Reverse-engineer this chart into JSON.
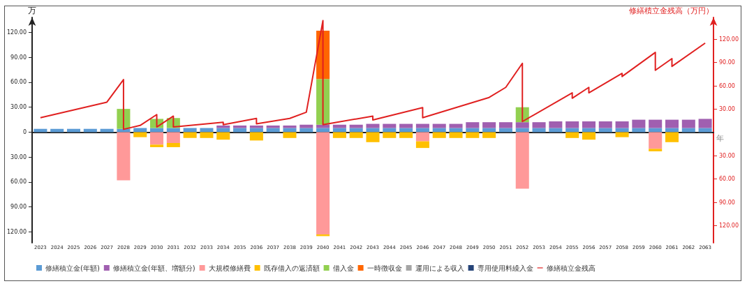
{
  "chart_data": {
    "type": "bar",
    "stacked": true,
    "ylabel": "万",
    "y2label": "修繕積立金残高（万円）",
    "xlabel": "年",
    "x": [
      2023,
      2024,
      2025,
      2026,
      2027,
      2028,
      2029,
      2030,
      2031,
      2032,
      2033,
      2034,
      2035,
      2036,
      2037,
      2038,
      2039,
      2040,
      2041,
      2042,
      2043,
      2044,
      2045,
      2046,
      2047,
      2048,
      2049,
      2050,
      2051,
      2052,
      2053,
      2054,
      2055,
      2056,
      2057,
      2058,
      2059,
      2060,
      2061,
      2062,
      2063
    ],
    "xlim": [
      2022.5,
      2063.5
    ],
    "xticks": [
      2023,
      2024,
      2025,
      2026,
      2027,
      2028,
      2029,
      2030,
      2031,
      2032,
      2033,
      2034,
      2035,
      2036,
      2037,
      2038,
      2039,
      2040,
      2041,
      2042,
      2043,
      2044,
      2045,
      2046,
      2047,
      2048,
      2049,
      2050,
      2051,
      2052,
      2053,
      2054,
      2055,
      2056,
      2057,
      2058,
      2059,
      2060,
      2061,
      2062,
      2063
    ],
    "series": [
      {
        "name": "修繕積立金(年額)",
        "color": "#5b9bd5",
        "values": [
          4,
          4,
          4,
          4,
          4,
          4,
          5,
          5,
          5,
          5,
          5,
          5,
          5,
          5,
          5,
          5,
          5,
          5,
          5,
          5,
          5,
          5,
          5,
          5,
          5,
          5,
          5,
          5,
          5,
          5,
          5,
          5,
          5,
          5,
          5,
          5,
          5,
          5,
          5,
          5,
          5
        ]
      },
      {
        "name": "修繕積立金(年額、増額分)",
        "color": "#a05fb0",
        "values": [
          null,
          null,
          null,
          null,
          null,
          null,
          null,
          null,
          null,
          null,
          null,
          3,
          3,
          3,
          3,
          3,
          4,
          4,
          4,
          4,
          5,
          5,
          5,
          5,
          5,
          5,
          7,
          7,
          7,
          7,
          7,
          8,
          8,
          8,
          8,
          8,
          10,
          10,
          10,
          10,
          11
        ]
      },
      {
        "name": "大規模修繕費",
        "color": "#ff9999",
        "values": [
          null,
          null,
          null,
          null,
          null,
          -58,
          null,
          -15,
          -13,
          null,
          null,
          null,
          null,
          null,
          null,
          null,
          null,
          -123,
          null,
          null,
          null,
          null,
          null,
          -11,
          null,
          null,
          null,
          null,
          null,
          -68,
          null,
          null,
          null,
          null,
          null,
          null,
          null,
          -20,
          null,
          null,
          null
        ]
      },
      {
        "name": "既存借入の返済額",
        "color": "#ffc000",
        "values": [
          null,
          null,
          null,
          null,
          null,
          null,
          -6,
          -3,
          -5,
          -7,
          -7,
          -9,
          null,
          -10,
          null,
          -7,
          null,
          -2,
          -7,
          -7,
          -12,
          -7,
          -7,
          -8,
          -7,
          -7,
          -7,
          -7,
          null,
          null,
          null,
          null,
          -7,
          -9,
          null,
          -6,
          null,
          -3,
          -12,
          null,
          null
        ]
      },
      {
        "name": "借入金",
        "color": "#92d050",
        "values": [
          null,
          null,
          null,
          null,
          null,
          24,
          null,
          11,
          12,
          null,
          null,
          null,
          null,
          null,
          null,
          null,
          null,
          55,
          null,
          null,
          null,
          null,
          null,
          null,
          null,
          null,
          null,
          null,
          null,
          18,
          null,
          null,
          null,
          null,
          null,
          null,
          null,
          null,
          null,
          null,
          null
        ]
      },
      {
        "name": "一時徴収金",
        "color": "#ff6600",
        "values": [
          null,
          null,
          null,
          null,
          null,
          null,
          null,
          null,
          null,
          null,
          null,
          null,
          null,
          null,
          null,
          null,
          null,
          58,
          null,
          null,
          null,
          null,
          null,
          null,
          null,
          null,
          null,
          null,
          null,
          null,
          null,
          null,
          null,
          null,
          null,
          null,
          null,
          null,
          null,
          null,
          null
        ]
      },
      {
        "name": "運用による収入",
        "color": "#a5a5a5",
        "values": [
          null,
          null,
          null,
          null,
          null,
          null,
          null,
          null,
          null,
          null,
          null,
          null,
          null,
          null,
          null,
          null,
          null,
          null,
          null,
          null,
          null,
          null,
          null,
          null,
          null,
          null,
          null,
          null,
          null,
          null,
          null,
          null,
          null,
          null,
          null,
          null,
          null,
          null,
          null,
          null,
          null
        ]
      },
      {
        "name": "専用使用料繰入金",
        "color": "#264478",
        "values": [
          null,
          null,
          null,
          null,
          null,
          null,
          null,
          null,
          null,
          null,
          null,
          null,
          null,
          null,
          null,
          null,
          null,
          null,
          null,
          null,
          null,
          null,
          null,
          null,
          null,
          null,
          null,
          null,
          null,
          null,
          null,
          null,
          null,
          null,
          null,
          null,
          null,
          null,
          null,
          null,
          null
        ]
      },
      {
        "name": "修繕積立金残高",
        "type": "line",
        "axis": "y2",
        "color": "#e02020",
        "marker": "none",
        "x": [
          2023,
          2027,
          2028,
          2028,
          2029,
          2030,
          2030,
          2031,
          2031,
          2034,
          2034,
          2036,
          2036,
          2038,
          2039,
          2040,
          2040,
          2043,
          2043,
          2046,
          2046,
          2050,
          2051,
          2052,
          2052,
          2055,
          2055,
          2056,
          2056,
          2058,
          2058,
          2060,
          2060,
          2061,
          2061,
          2063
        ],
        "values": [
          19,
          39,
          68,
          4,
          9,
          23,
          7,
          21,
          7,
          13,
          10,
          18,
          11,
          18,
          26,
          144,
          10,
          21,
          16,
          32,
          19,
          45,
          58,
          89,
          14,
          51,
          44,
          58,
          51,
          76,
          72,
          103,
          80,
          95,
          85,
          115
        ]
      }
    ],
    "ylim": [
      -133,
      138
    ],
    "yticks": [
      {
        "value": -120,
        "label": "120.00"
      },
      {
        "value": -90,
        "label": "90.00"
      },
      {
        "value": -60,
        "label": "60.00"
      },
      {
        "value": -30,
        "label": "30.00"
      },
      0,
      {
        "value": 30,
        "label": "30.00"
      },
      {
        "value": 60,
        "label": "60.00"
      },
      {
        "value": 90,
        "label": "90.00"
      },
      {
        "value": 120,
        "label": "120.00"
      }
    ],
    "y2lim": [
      -142,
      148
    ],
    "y2ticks": [
      {
        "value": -120,
        "label": "120.00"
      },
      {
        "value": -90,
        "label": "90.00"
      },
      {
        "value": -60,
        "label": "60.00"
      },
      {
        "value": -30,
        "label": "30.00"
      },
      {
        "value": 30,
        "label": "30.00"
      },
      {
        "value": 60,
        "label": "60.00"
      },
      {
        "value": 90,
        "label": "90.00"
      },
      {
        "value": 120,
        "label": "120.00"
      }
    ],
    "legend": "bottom"
  }
}
